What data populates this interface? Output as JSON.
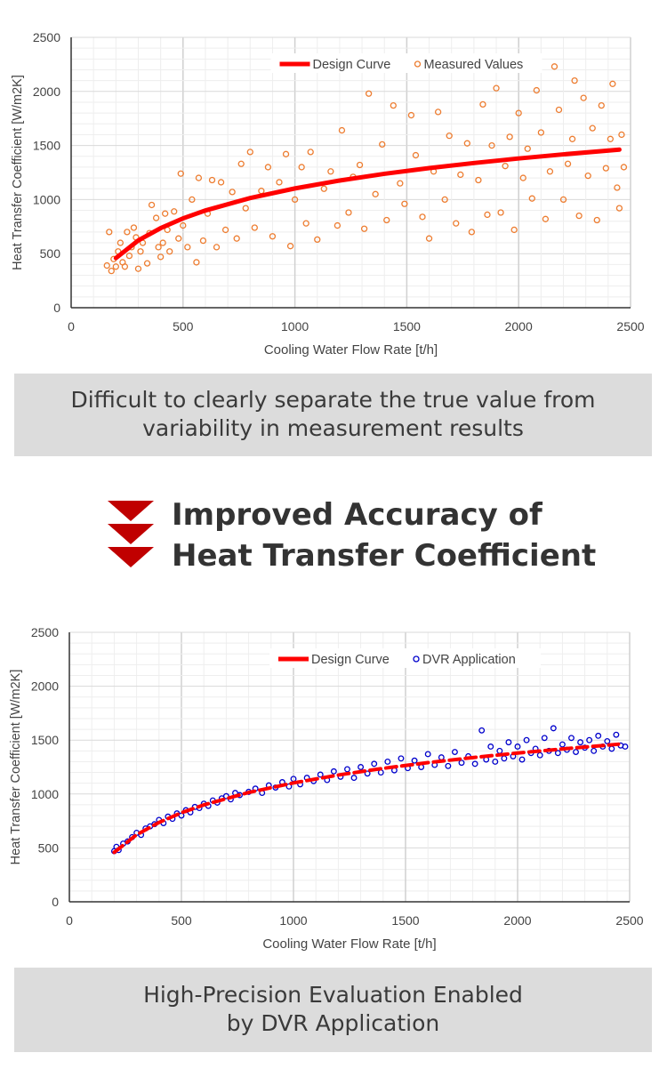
{
  "chart_data": [
    {
      "type": "scatter",
      "title": "",
      "xlabel": "Cooling Water Flow Rate [t/h]",
      "ylabel": "Heat Transfer Coefficient [W/m2K]",
      "xlim": [
        0,
        2500
      ],
      "ylim": [
        0,
        2500
      ],
      "xticks": [
        "0",
        "500",
        "1000",
        "1500",
        "2000",
        "2500"
      ],
      "yticks": [
        "0",
        "500",
        "1000",
        "1500",
        "2000",
        "2500"
      ],
      "grid": true,
      "legend": "top-center",
      "series": [
        {
          "name": "Design Curve",
          "kind": "line",
          "color": "#ff0000",
          "x": [
            200,
            300,
            400,
            500,
            600,
            800,
            1000,
            1200,
            1400,
            1600,
            1800,
            2000,
            2200,
            2450
          ],
          "y": [
            459,
            622,
            736,
            826,
            899,
            1014,
            1103,
            1176,
            1238,
            1291,
            1338,
            1380,
            1418,
            1462
          ]
        },
        {
          "name": "Measured Values",
          "kind": "scatter",
          "color": "#ed7d31",
          "points": [
            [
              160,
              390
            ],
            [
              170,
              700
            ],
            [
              180,
              340
            ],
            [
              190,
              450
            ],
            [
              200,
              380
            ],
            [
              210,
              520
            ],
            [
              220,
              600
            ],
            [
              230,
              420
            ],
            [
              240,
              380
            ],
            [
              250,
              700
            ],
            [
              260,
              480
            ],
            [
              270,
              560
            ],
            [
              280,
              740
            ],
            [
              290,
              650
            ],
            [
              300,
              360
            ],
            [
              310,
              520
            ],
            [
              320,
              600
            ],
            [
              340,
              410
            ],
            [
              350,
              690
            ],
            [
              360,
              950
            ],
            [
              380,
              830
            ],
            [
              390,
              560
            ],
            [
              400,
              470
            ],
            [
              410,
              600
            ],
            [
              420,
              870
            ],
            [
              430,
              720
            ],
            [
              440,
              520
            ],
            [
              460,
              890
            ],
            [
              480,
              640
            ],
            [
              490,
              1240
            ],
            [
              500,
              760
            ],
            [
              520,
              560
            ],
            [
              540,
              1000
            ],
            [
              560,
              420
            ],
            [
              570,
              1200
            ],
            [
              590,
              620
            ],
            [
              610,
              870
            ],
            [
              630,
              1180
            ],
            [
              650,
              560
            ],
            [
              670,
              1160
            ],
            [
              690,
              720
            ],
            [
              720,
              1070
            ],
            [
              740,
              640
            ],
            [
              760,
              1330
            ],
            [
              780,
              920
            ],
            [
              800,
              1440
            ],
            [
              820,
              740
            ],
            [
              850,
              1080
            ],
            [
              880,
              1300
            ],
            [
              900,
              660
            ],
            [
              930,
              1160
            ],
            [
              960,
              1420
            ],
            [
              980,
              570
            ],
            [
              1000,
              1000
            ],
            [
              1030,
              1300
            ],
            [
              1050,
              780
            ],
            [
              1070,
              1440
            ],
            [
              1100,
              630
            ],
            [
              1130,
              1100
            ],
            [
              1160,
              1260
            ],
            [
              1190,
              760
            ],
            [
              1210,
              1640
            ],
            [
              1240,
              880
            ],
            [
              1260,
              1210
            ],
            [
              1290,
              1320
            ],
            [
              1310,
              730
            ],
            [
              1330,
              1980
            ],
            [
              1360,
              1050
            ],
            [
              1390,
              1510
            ],
            [
              1410,
              810
            ],
            [
              1440,
              1870
            ],
            [
              1470,
              1150
            ],
            [
              1490,
              960
            ],
            [
              1520,
              1780
            ],
            [
              1540,
              1410
            ],
            [
              1570,
              840
            ],
            [
              1600,
              640
            ],
            [
              1620,
              1260
            ],
            [
              1640,
              1810
            ],
            [
              1670,
              1000
            ],
            [
              1690,
              1590
            ],
            [
              1720,
              780
            ],
            [
              1740,
              1230
            ],
            [
              1770,
              1520
            ],
            [
              1790,
              700
            ],
            [
              1820,
              1180
            ],
            [
              1840,
              1880
            ],
            [
              1860,
              860
            ],
            [
              1880,
              1500
            ],
            [
              1900,
              2030
            ],
            [
              1920,
              880
            ],
            [
              1940,
              1310
            ],
            [
              1960,
              1580
            ],
            [
              1980,
              720
            ],
            [
              2000,
              1800
            ],
            [
              2020,
              1200
            ],
            [
              2040,
              1470
            ],
            [
              2060,
              1010
            ],
            [
              2080,
              2010
            ],
            [
              2100,
              1620
            ],
            [
              2120,
              820
            ],
            [
              2140,
              1260
            ],
            [
              2160,
              2230
            ],
            [
              2180,
              1830
            ],
            [
              2200,
              1000
            ],
            [
              2220,
              1330
            ],
            [
              2240,
              1560
            ],
            [
              2250,
              2100
            ],
            [
              2270,
              850
            ],
            [
              2290,
              1940
            ],
            [
              2310,
              1220
            ],
            [
              2330,
              1660
            ],
            [
              2350,
              810
            ],
            [
              2370,
              1870
            ],
            [
              2390,
              1290
            ],
            [
              2410,
              1560
            ],
            [
              2420,
              2070
            ],
            [
              2440,
              1110
            ],
            [
              2450,
              920
            ],
            [
              2460,
              1600
            ],
            [
              2470,
              1300
            ]
          ]
        }
      ]
    },
    {
      "type": "scatter",
      "title": "",
      "xlabel": "Cooling Water Flow Rate [t/h]",
      "ylabel": "Heat Transfer Coefficient [W/m2K]",
      "xlim": [
        0,
        2500
      ],
      "ylim": [
        0,
        2500
      ],
      "xticks": [
        "0",
        "500",
        "1000",
        "1500",
        "2000",
        "2500"
      ],
      "yticks": [
        "0",
        "500",
        "1000",
        "1500",
        "2000",
        "2500"
      ],
      "grid": true,
      "legend": "top-center",
      "series": [
        {
          "name": "Design Curve",
          "kind": "line",
          "color": "#ff0000",
          "x": [
            200,
            300,
            400,
            500,
            600,
            800,
            1000,
            1200,
            1400,
            1600,
            1800,
            2000,
            2200,
            2450
          ],
          "y": [
            459,
            622,
            736,
            826,
            899,
            1014,
            1103,
            1176,
            1238,
            1291,
            1338,
            1380,
            1418,
            1462
          ]
        },
        {
          "name": "DVR Application",
          "kind": "scatter",
          "color": "#0000cc",
          "points": [
            [
              200,
              470
            ],
            [
              210,
              510
            ],
            [
              220,
              480
            ],
            [
              240,
              540
            ],
            [
              260,
              560
            ],
            [
              280,
              600
            ],
            [
              300,
              640
            ],
            [
              320,
              620
            ],
            [
              340,
              680
            ],
            [
              360,
              700
            ],
            [
              380,
              720
            ],
            [
              400,
              760
            ],
            [
              420,
              730
            ],
            [
              440,
              790
            ],
            [
              460,
              770
            ],
            [
              480,
              820
            ],
            [
              500,
              800
            ],
            [
              520,
              850
            ],
            [
              540,
              830
            ],
            [
              560,
              880
            ],
            [
              580,
              870
            ],
            [
              600,
              910
            ],
            [
              620,
              890
            ],
            [
              640,
              940
            ],
            [
              660,
              920
            ],
            [
              680,
              960
            ],
            [
              700,
              980
            ],
            [
              720,
              950
            ],
            [
              740,
              1010
            ],
            [
              760,
              990
            ],
            [
              800,
              1020
            ],
            [
              830,
              1050
            ],
            [
              860,
              1010
            ],
            [
              890,
              1080
            ],
            [
              920,
              1060
            ],
            [
              950,
              1110
            ],
            [
              980,
              1070
            ],
            [
              1000,
              1140
            ],
            [
              1030,
              1090
            ],
            [
              1060,
              1150
            ],
            [
              1090,
              1120
            ],
            [
              1120,
              1180
            ],
            [
              1150,
              1130
            ],
            [
              1180,
              1210
            ],
            [
              1210,
              1160
            ],
            [
              1240,
              1230
            ],
            [
              1270,
              1150
            ],
            [
              1300,
              1250
            ],
            [
              1330,
              1190
            ],
            [
              1360,
              1280
            ],
            [
              1390,
              1200
            ],
            [
              1420,
              1300
            ],
            [
              1450,
              1220
            ],
            [
              1480,
              1330
            ],
            [
              1510,
              1240
            ],
            [
              1540,
              1310
            ],
            [
              1570,
              1250
            ],
            [
              1600,
              1370
            ],
            [
              1630,
              1270
            ],
            [
              1660,
              1340
            ],
            [
              1690,
              1260
            ],
            [
              1720,
              1390
            ],
            [
              1750,
              1290
            ],
            [
              1780,
              1350
            ],
            [
              1810,
              1280
            ],
            [
              1840,
              1590
            ],
            [
              1860,
              1320
            ],
            [
              1880,
              1440
            ],
            [
              1900,
              1300
            ],
            [
              1920,
              1400
            ],
            [
              1940,
              1330
            ],
            [
              1960,
              1480
            ],
            [
              1980,
              1350
            ],
            [
              2000,
              1440
            ],
            [
              2020,
              1320
            ],
            [
              2040,
              1500
            ],
            [
              2060,
              1380
            ],
            [
              2080,
              1420
            ],
            [
              2100,
              1360
            ],
            [
              2120,
              1520
            ],
            [
              2140,
              1400
            ],
            [
              2160,
              1610
            ],
            [
              2180,
              1380
            ],
            [
              2200,
              1460
            ],
            [
              2220,
              1410
            ],
            [
              2240,
              1520
            ],
            [
              2260,
              1390
            ],
            [
              2280,
              1480
            ],
            [
              2300,
              1430
            ],
            [
              2320,
              1500
            ],
            [
              2340,
              1400
            ],
            [
              2360,
              1540
            ],
            [
              2380,
              1440
            ],
            [
              2400,
              1490
            ],
            [
              2420,
              1420
            ],
            [
              2440,
              1550
            ],
            [
              2460,
              1450
            ],
            [
              2480,
              1440
            ]
          ]
        }
      ]
    }
  ],
  "caption_top": [
    "Difficult to clearly separate the true value from",
    "variability in measurement results"
  ],
  "headline": [
    "Improved Accuracy of",
    "Heat Transfer Coefficient"
  ],
  "caption_bottom": [
    "High-Precision Evaluation Enabled",
    "by DVR Application"
  ]
}
